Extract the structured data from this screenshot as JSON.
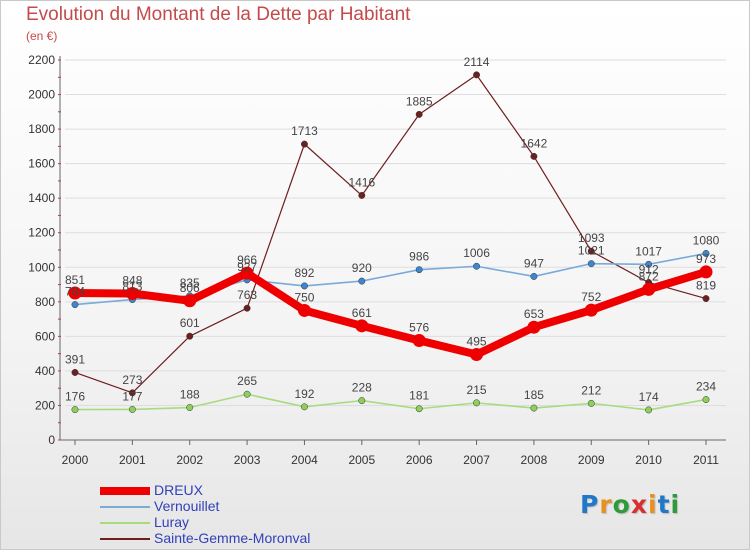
{
  "header": {
    "title": "Evolution du Montant de la Dette par Habitant",
    "subtitle": "(en €)"
  },
  "logo": {
    "text": "Proxiti",
    "letter_colors": [
      "#1f78c8",
      "#e89020",
      "#2f9a3a",
      "#d83030",
      "#e89020",
      "#1f78c8",
      "#2f9a3a"
    ]
  },
  "colors": {
    "grid": "#dddddd",
    "axis": "#666666",
    "tick_label": "#333333",
    "data_label": "#444444"
  },
  "chart_data": {
    "type": "line",
    "title": "Evolution du Montant de la Dette par Habitant",
    "subtitle": "(en €)",
    "xlabel": "",
    "ylabel": "",
    "x": [
      "2000",
      "2001",
      "2002",
      "2003",
      "2004",
      "2005",
      "2006",
      "2007",
      "2008",
      "2009",
      "2010",
      "2011"
    ],
    "ylim": [
      0,
      2200
    ],
    "yticks": [
      0,
      200,
      400,
      600,
      800,
      1000,
      1200,
      1400,
      1600,
      1800,
      2000,
      2200
    ],
    "grid": true,
    "legend_position": "bottom-left",
    "series": [
      {
        "name": "Sainte-Gemme-Moronval",
        "color": "#6e1f1f",
        "marker": "#6e1f1f",
        "weight": 1.2,
        "values": [
          391,
          273,
          601,
          763,
          1713,
          1416,
          1885,
          2114,
          1642,
          1093,
          912,
          819
        ]
      },
      {
        "name": "Luray",
        "color": "#a6dc80",
        "marker": "#8ccf5a",
        "weight": 1.6,
        "values": [
          176,
          177,
          188,
          265,
          192,
          228,
          181,
          215,
          185,
          212,
          174,
          234
        ]
      },
      {
        "name": "Vernouillet",
        "color": "#7aaad8",
        "marker": "#3d86d0",
        "weight": 1.6,
        "values": [
          784,
          813,
          835,
          927,
          892,
          920,
          986,
          1006,
          947,
          1021,
          1017,
          1080
        ]
      },
      {
        "name": "DREUX",
        "color": "#ee0000",
        "marker": "#ee0000",
        "weight": 8,
        "values": [
          851,
          848,
          806,
          966,
          750,
          661,
          576,
          495,
          653,
          752,
          872,
          973
        ]
      }
    ]
  },
  "legend": {
    "items": [
      {
        "label": "DREUX",
        "color": "#ee0000",
        "weight": 8
      },
      {
        "label": "Vernouillet",
        "color": "#7aaad8",
        "weight": 2
      },
      {
        "label": "Luray",
        "color": "#a6dc80",
        "weight": 2
      },
      {
        "label": "Sainte-Gemme-Moronval",
        "color": "#6e1f1f",
        "weight": 2
      }
    ]
  }
}
